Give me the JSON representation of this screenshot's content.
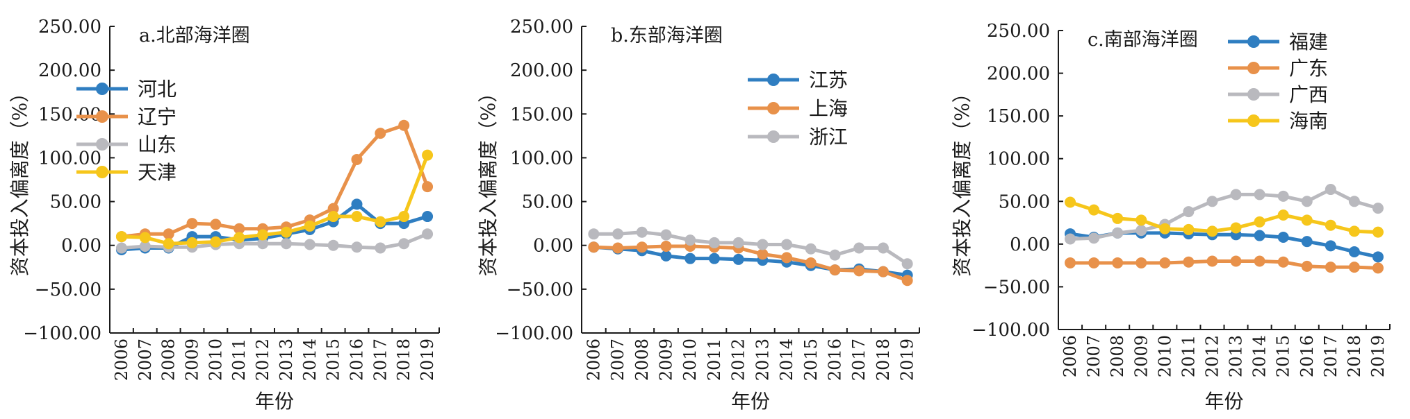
{
  "colors": {
    "blue": "#2F7EC1",
    "orange": "#E8914A",
    "gray": "#B9B9BE",
    "yellow": "#F6C61B",
    "axis": "#1a1a1a"
  },
  "chart_data": [
    {
      "type": "line",
      "title": "a.北部海洋圈",
      "xlabel": "年份",
      "ylabel": "资本投入偏离度（%）",
      "ylim": [
        -100,
        250
      ],
      "yticks": [
        "250.00",
        "200.00",
        "150.00",
        "100.00",
        "50.00",
        "0.00",
        "−50.00",
        "−100.00"
      ],
      "x": [
        "2006",
        "2007",
        "2008",
        "2009",
        "2010",
        "2011",
        "2012",
        "2013",
        "2014",
        "2015",
        "2016",
        "2017",
        "2018",
        "2019"
      ],
      "legend": "upper-left",
      "series": [
        {
          "name": "河北",
          "color": "#2F7EC1",
          "values": [
            -5,
            -3,
            -3,
            10,
            10,
            6,
            8,
            13,
            18,
            27,
            47,
            25,
            25,
            33
          ]
        },
        {
          "name": "辽宁",
          "color": "#E8914A",
          "values": [
            10,
            13,
            13,
            25,
            24,
            19,
            19,
            21,
            29,
            42,
            98,
            128,
            137,
            67
          ]
        },
        {
          "name": "山东",
          "color": "#B9B9BE",
          "values": [
            -3,
            -1,
            -2,
            -2,
            1,
            2,
            2,
            2,
            1,
            0,
            -2,
            -3,
            2,
            13
          ]
        },
        {
          "name": "天津",
          "color": "#F6C61B",
          "values": [
            10,
            9,
            2,
            3,
            4,
            9,
            12,
            15,
            22,
            33,
            33,
            27,
            33,
            103
          ]
        }
      ]
    },
    {
      "type": "line",
      "title": "b.东部海洋圈",
      "xlabel": "年份",
      "ylabel": "资本投入偏离度（%）",
      "ylim": [
        -100,
        250
      ],
      "yticks": [
        "250.00",
        "200.00",
        "150.00",
        "100.00",
        "50.00",
        "0.00",
        "−50.00",
        "−100.00"
      ],
      "x": [
        "2006",
        "2007",
        "2008",
        "2009",
        "2010",
        "2011",
        "2012",
        "2013",
        "2014",
        "2015",
        "2016",
        "2017",
        "2018",
        "2019"
      ],
      "legend": "upper-right",
      "series": [
        {
          "name": "江苏",
          "color": "#2F7EC1",
          "values": [
            -2,
            -4,
            -6,
            -12,
            -15,
            -15,
            -16,
            -17,
            -19,
            -23,
            -28,
            -27,
            -30,
            -34
          ]
        },
        {
          "name": "上海",
          "color": "#E8914A",
          "values": [
            -2,
            -3,
            -2,
            -1,
            -1,
            -2,
            -3,
            -10,
            -14,
            -20,
            -28,
            -29,
            -30,
            -40
          ]
        },
        {
          "name": "浙江",
          "color": "#B9B9BE",
          "values": [
            13,
            13,
            15,
            12,
            6,
            3,
            3,
            1,
            1,
            -4,
            -11,
            -3,
            -3,
            -21
          ]
        }
      ]
    },
    {
      "type": "line",
      "title": "c.南部海洋圈",
      "xlabel": "年份",
      "ylabel": "资本投入偏离度（%）",
      "ylim": [
        -100,
        250
      ],
      "yticks": [
        "250.00",
        "200.00",
        "150.00",
        "100.00",
        "50.00",
        "0.00",
        "−50.00",
        "−100.00"
      ],
      "x": [
        "2006",
        "2007",
        "2008",
        "2009",
        "2010",
        "2011",
        "2012",
        "2013",
        "2014",
        "2015",
        "2016",
        "2017",
        "2018",
        "2019"
      ],
      "legend": "upper-right",
      "series": [
        {
          "name": "福建",
          "color": "#2F7EC1",
          "values": [
            12,
            8,
            13,
            13,
            13,
            12,
            11,
            11,
            10,
            8,
            3,
            -2,
            -9,
            -15
          ]
        },
        {
          "name": "广东",
          "color": "#E8914A",
          "values": [
            -22,
            -22,
            -22,
            -22,
            -22,
            -21,
            -20,
            -20,
            -20,
            -21,
            -26,
            -27,
            -27,
            -28
          ]
        },
        {
          "name": "广西",
          "color": "#B9B9BE",
          "values": [
            6,
            7,
            13,
            16,
            23,
            38,
            50,
            58,
            58,
            56,
            50,
            64,
            50,
            42
          ]
        },
        {
          "name": "海南",
          "color": "#F6C61B",
          "values": [
            49,
            40,
            30,
            28,
            18,
            17,
            15,
            19,
            26,
            34,
            28,
            22,
            15,
            14
          ]
        }
      ]
    }
  ]
}
